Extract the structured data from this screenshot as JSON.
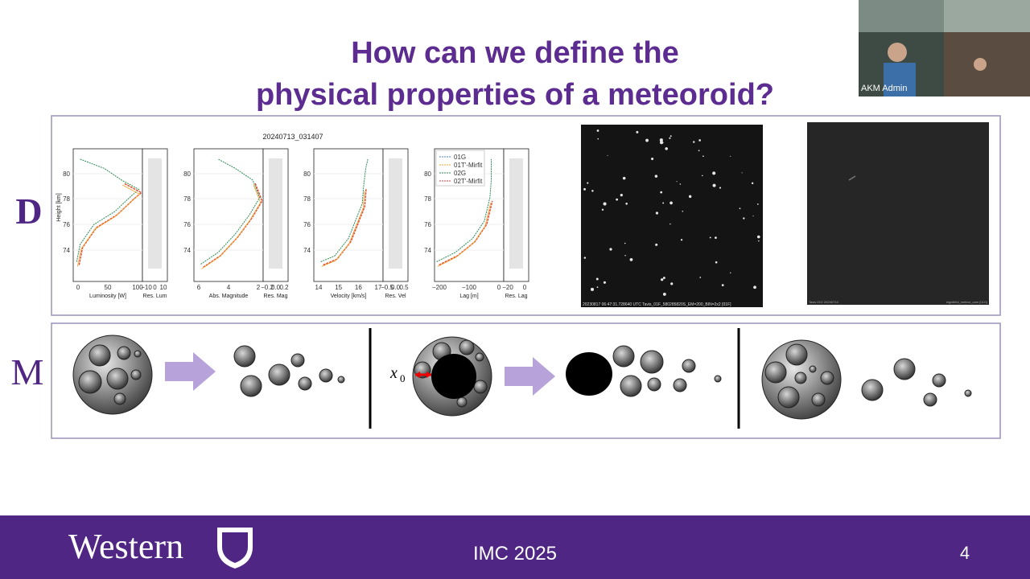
{
  "webcam": {
    "name": "AKM Admin"
  },
  "title": [
    "How can we define the",
    "physical properties of a meteoroid?"
  ],
  "rows": {
    "data_label": "D",
    "model_label": "M"
  },
  "figure": {
    "title": "20240713_031407",
    "ylabel": "Height [km]",
    "yticks": [
      "74",
      "76",
      "78",
      "80"
    ],
    "legend": [
      "01G",
      "01T'-Mirfit",
      "02G",
      "02T'-Mirfit"
    ],
    "panels": [
      {
        "xlabel": "Luminosity [W]",
        "xticks": [
          "0",
          "50",
          "100"
        ],
        "res_label": "Res. Lum",
        "res_xticks": [
          "−10",
          "0",
          "10"
        ]
      },
      {
        "xlabel": "Abs. Magnitude",
        "xticks": [
          "6",
          "4",
          "2"
        ],
        "res_label": "Res. Mag",
        "res_xticks": [
          "−0.2",
          "0.0",
          "0.2"
        ]
      },
      {
        "xlabel": "Velocity [km/s]",
        "xticks": [
          "14",
          "15",
          "16",
          "17"
        ],
        "res_label": "Res. Vel",
        "res_xticks": [
          "−0.5",
          "0.0",
          "0.5"
        ]
      },
      {
        "xlabel": "Lag [m]",
        "xticks": [
          "−200",
          "−100",
          "0"
        ],
        "res_label": "Res. Lag",
        "res_xticks": [
          "−20",
          "0"
        ]
      }
    ]
  },
  "images": [
    {
      "caption": "20230817 06:47:31.728640 UTC Tavis_01F_580285820S_EM=200_BIN=2x2 [01F]"
    },
    {
      "caption_left": "Tavis 01G 20240713",
      "caption_right": "elginfield_meteor_cam [01G]"
    }
  ],
  "model": {
    "symbol": "x",
    "subscript": "0"
  },
  "footer": {
    "logo": "Western",
    "event": "IMC 2025",
    "page": "4"
  }
}
